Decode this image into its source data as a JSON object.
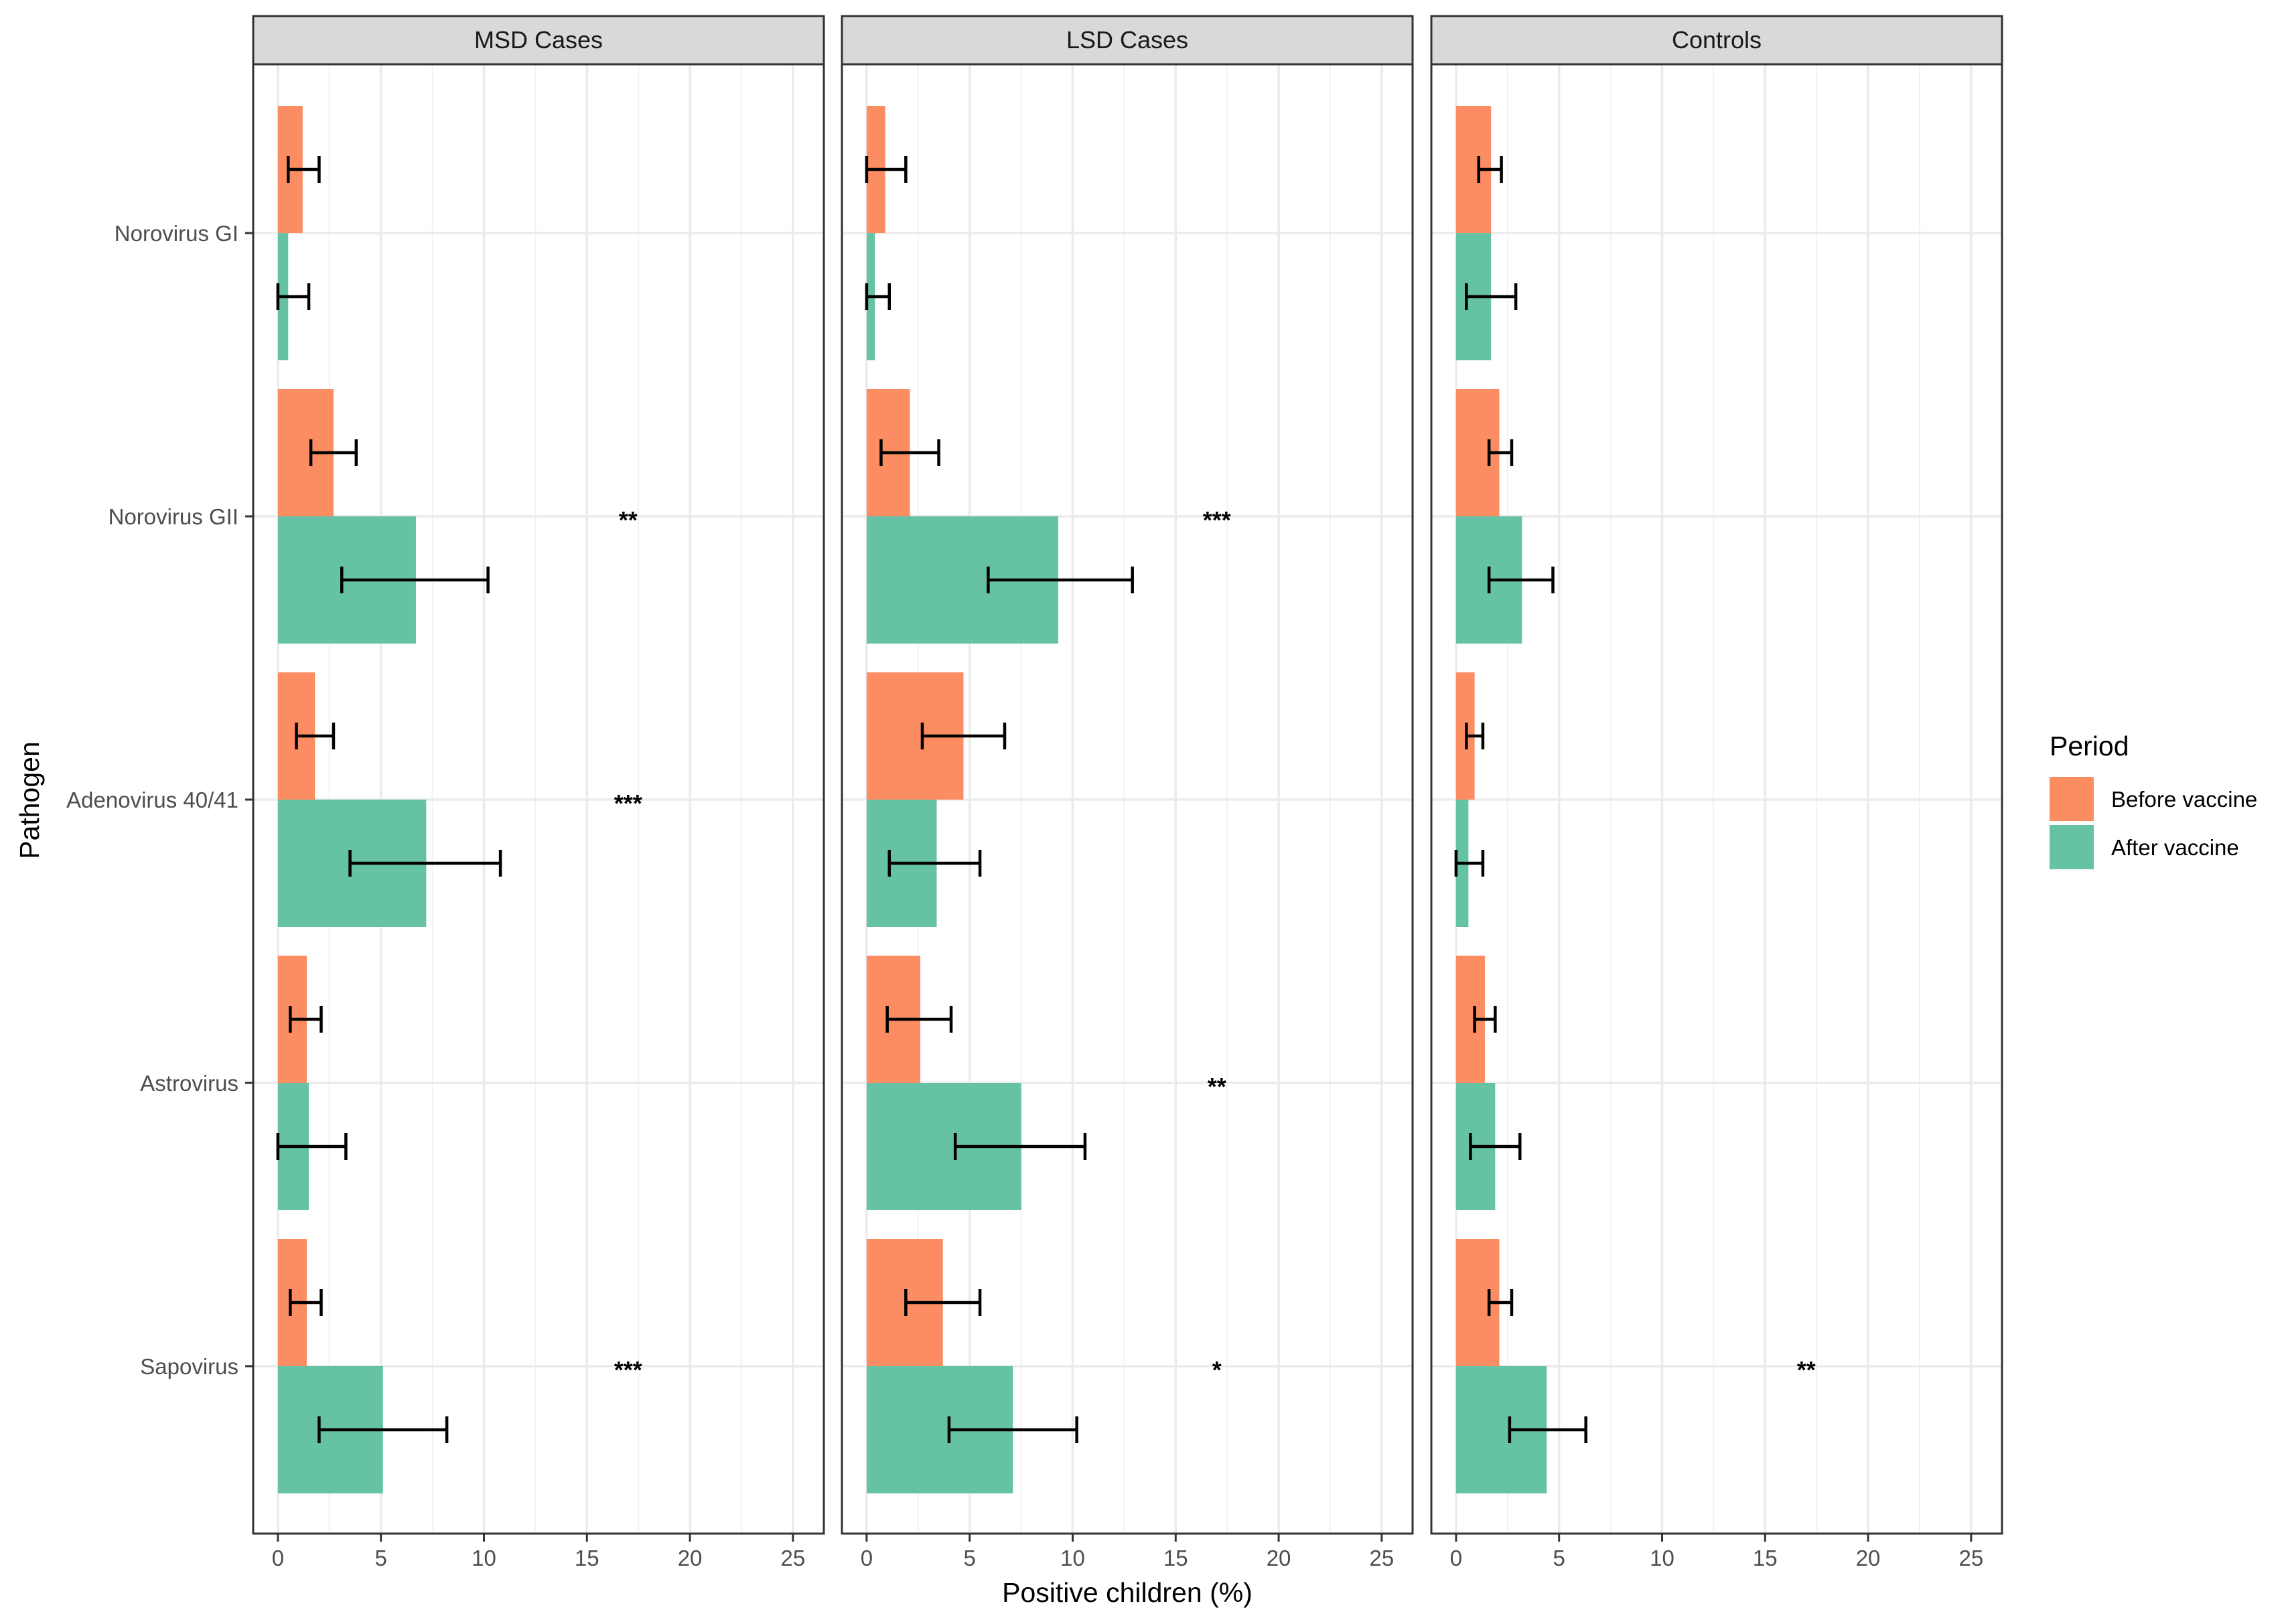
{
  "chart_data": {
    "type": "bar",
    "orientation": "horizontal",
    "xlabel": "Positive children (%)",
    "ylabel": "Pathogen",
    "xlim": [
      -1.2,
      26.5
    ],
    "xticks": [
      0,
      5,
      10,
      15,
      20,
      25
    ],
    "xtick_labels": [
      "0",
      "5",
      "10",
      "15",
      "20",
      "25"
    ],
    "grid": true,
    "legend": {
      "title": "Period",
      "position": "right",
      "entries": [
        {
          "label": "Before vaccine",
          "color": "#FC8D62"
        },
        {
          "label": "After vaccine",
          "color": "#66C2A5"
        }
      ]
    },
    "categories": [
      "Norovirus GI",
      "Norovirus GII",
      "Adenovirus 40/41",
      "Astrovirus",
      "Sapovirus"
    ],
    "panels": [
      {
        "title": "MSD Cases",
        "series": [
          {
            "name": "Before vaccine",
            "values": [
              1.2,
              2.7,
              1.8,
              1.4,
              1.4
            ],
            "ci_low": [
              0.5,
              1.6,
              0.9,
              0.6,
              0.6
            ],
            "ci_high": [
              2.0,
              3.8,
              2.7,
              2.1,
              2.1
            ]
          },
          {
            "name": "After vaccine",
            "values": [
              0.5,
              6.7,
              7.2,
              1.5,
              5.1
            ],
            "ci_low": [
              0.0,
              3.1,
              3.5,
              0.0,
              2.0
            ],
            "ci_high": [
              1.5,
              10.2,
              10.8,
              3.3,
              8.2
            ]
          }
        ],
        "significance": [
          "",
          "**",
          "***",
          "",
          "***"
        ]
      },
      {
        "title": "LSD Cases",
        "series": [
          {
            "name": "Before vaccine",
            "values": [
              0.9,
              2.1,
              4.7,
              2.6,
              3.7
            ],
            "ci_low": [
              0.0,
              0.7,
              2.7,
              1.0,
              1.9
            ],
            "ci_high": [
              1.9,
              3.5,
              6.7,
              4.1,
              5.5
            ]
          },
          {
            "name": "After vaccine",
            "values": [
              0.4,
              9.3,
              3.4,
              7.5,
              7.1
            ],
            "ci_low": [
              0.0,
              5.9,
              1.1,
              4.3,
              4.0
            ],
            "ci_high": [
              1.1,
              12.9,
              5.5,
              10.6,
              10.2
            ]
          }
        ],
        "significance": [
          "",
          "***",
          "",
          "**",
          "*"
        ]
      },
      {
        "title": "Controls",
        "series": [
          {
            "name": "Before vaccine",
            "values": [
              1.7,
              2.1,
              0.9,
              1.4,
              2.1
            ],
            "ci_low": [
              1.1,
              1.6,
              0.5,
              0.9,
              1.6
            ],
            "ci_high": [
              2.2,
              2.7,
              1.3,
              1.9,
              2.7
            ]
          },
          {
            "name": "After vaccine",
            "values": [
              1.7,
              3.2,
              0.6,
              1.9,
              4.4
            ],
            "ci_low": [
              0.5,
              1.6,
              0.0,
              0.7,
              2.6
            ],
            "ci_high": [
              2.9,
              4.7,
              1.3,
              3.1,
              6.3
            ]
          }
        ],
        "significance": [
          "",
          "",
          "",
          "",
          "**"
        ]
      }
    ],
    "significance_x": 17
  }
}
